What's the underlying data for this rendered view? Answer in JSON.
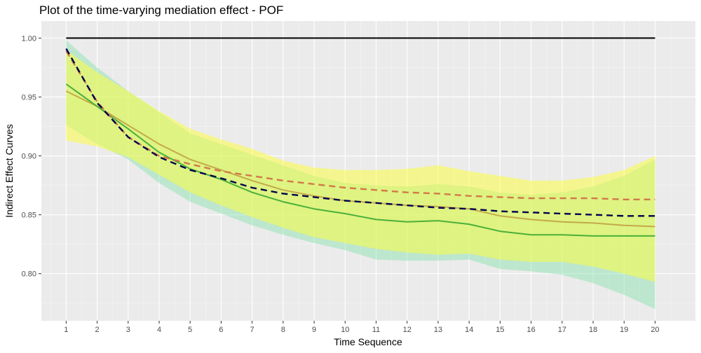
{
  "chart_data": {
    "type": "line",
    "title": "Plot of the time-varying mediation effect - POF",
    "xlabel": "Time Sequence",
    "ylabel": "Indirect Effect Curves",
    "xlim": [
      0.2,
      21.3
    ],
    "ylim": [
      0.76,
      1.0145
    ],
    "x_ticks": [
      1,
      2,
      3,
      4,
      5,
      6,
      7,
      8,
      9,
      10,
      11,
      12,
      13,
      14,
      15,
      16,
      17,
      18,
      19,
      20
    ],
    "x_tick_labels": [
      "1",
      "2",
      "3",
      "4",
      "5",
      "6",
      "7",
      "8",
      "9",
      "10",
      "11",
      "12",
      "13",
      "14",
      "15",
      "16",
      "17",
      "18",
      "19",
      "20"
    ],
    "y_ticks": [
      0.8,
      0.85,
      0.9,
      0.95,
      1.0
    ],
    "y_tick_labels": [
      "0.80",
      "0.85",
      "0.90",
      "0.95",
      "1.00"
    ],
    "grid": true,
    "background": "#ebebeb",
    "x": [
      1,
      2,
      3,
      4,
      5,
      6,
      7,
      8,
      9,
      10,
      11,
      12,
      13,
      14,
      15,
      16,
      17,
      18,
      19,
      20
    ],
    "bands": [
      {
        "color": "#7fe0a8",
        "opacity": 0.42,
        "lower": [
          0.926,
          0.91,
          0.897,
          0.877,
          0.861,
          0.851,
          0.841,
          0.833,
          0.826,
          0.82,
          0.812,
          0.811,
          0.811,
          0.812,
          0.804,
          0.802,
          0.799,
          0.792,
          0.782,
          0.77
        ],
        "upper": [
          0.998,
          0.975,
          0.955,
          0.937,
          0.919,
          0.91,
          0.901,
          0.892,
          0.883,
          0.877,
          0.875,
          0.874,
          0.876,
          0.874,
          0.869,
          0.867,
          0.869,
          0.874,
          0.883,
          0.897
        ]
      },
      {
        "color": "#ffff33",
        "opacity": 0.5,
        "lower": [
          0.913,
          0.908,
          0.899,
          0.884,
          0.869,
          0.858,
          0.848,
          0.839,
          0.831,
          0.826,
          0.821,
          0.818,
          0.816,
          0.817,
          0.812,
          0.81,
          0.81,
          0.806,
          0.8,
          0.793
        ],
        "upper": [
          0.99,
          0.971,
          0.955,
          0.938,
          0.923,
          0.914,
          0.906,
          0.896,
          0.89,
          0.888,
          0.888,
          0.889,
          0.892,
          0.887,
          0.883,
          0.879,
          0.879,
          0.882,
          0.888,
          0.9
        ]
      }
    ],
    "series": [
      {
        "values": [
          1.0,
          1.0,
          1.0,
          1.0,
          1.0,
          1.0,
          1.0,
          1.0,
          1.0,
          1.0,
          1.0,
          1.0,
          1.0,
          1.0,
          1.0,
          1.0,
          1.0,
          1.0,
          1.0,
          1.0
        ],
        "color": "#000000",
        "dash": "solid"
      },
      {
        "values": [
          0.955,
          0.942,
          0.926,
          0.91,
          0.897,
          0.888,
          0.879,
          0.871,
          0.866,
          0.862,
          0.86,
          0.858,
          0.857,
          0.855,
          0.849,
          0.846,
          0.844,
          0.843,
          0.841,
          0.84
        ],
        "color": "#c4a94b",
        "dash": "solid"
      },
      {
        "values": [
          0.961,
          0.942,
          0.923,
          0.903,
          0.889,
          0.88,
          0.869,
          0.861,
          0.855,
          0.851,
          0.846,
          0.844,
          0.845,
          0.842,
          0.836,
          0.833,
          0.833,
          0.832,
          0.832,
          0.832
        ],
        "color": "#4ab03a",
        "dash": "solid"
      },
      {
        "values": [
          0.989,
          0.946,
          0.916,
          0.9,
          0.893,
          0.887,
          0.883,
          0.879,
          0.876,
          0.873,
          0.871,
          0.869,
          0.868,
          0.866,
          0.865,
          0.864,
          0.864,
          0.864,
          0.863,
          0.863
        ],
        "color": "#d2784a",
        "dash": "dashed"
      },
      {
        "values": [
          0.991,
          0.945,
          0.916,
          0.899,
          0.888,
          0.881,
          0.873,
          0.868,
          0.865,
          0.862,
          0.86,
          0.858,
          0.856,
          0.855,
          0.853,
          0.852,
          0.851,
          0.85,
          0.849,
          0.849
        ],
        "color": "#00004d",
        "dash": "dashed"
      }
    ]
  }
}
